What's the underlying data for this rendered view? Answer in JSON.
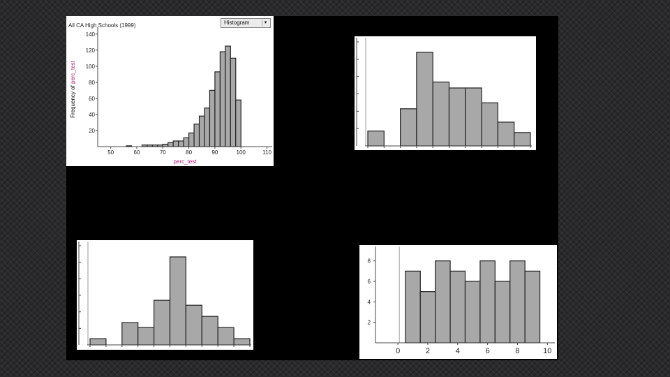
{
  "colors": {
    "bar_fill": "#a8a8a8",
    "bar_stroke": "#222222",
    "panel": "#000000",
    "accent_label": "#b0207a"
  },
  "chart_data": [
    {
      "type": "bar",
      "title": "All CA High Schools (1999)",
      "control": "Histogram",
      "xlabel": "perc_test",
      "ylabel_parts": [
        "Frequency of ",
        "perc_test"
      ],
      "x_ticks": [
        50,
        60,
        70,
        80,
        90,
        100,
        110
      ],
      "y_ticks": [
        20,
        40,
        60,
        80,
        100,
        120,
        140
      ],
      "xlim": [
        45,
        112
      ],
      "ylim": [
        0,
        145
      ],
      "bin_width": 2,
      "bin_starts": [
        56,
        62,
        64,
        66,
        68,
        70,
        72,
        74,
        76,
        78,
        80,
        82,
        84,
        86,
        88,
        90,
        92,
        94,
        96,
        98
      ],
      "values": [
        1,
        2,
        2,
        2,
        2,
        3,
        5,
        7,
        7,
        11,
        17,
        28,
        38,
        48,
        70,
        93,
        118,
        125,
        110,
        58
      ]
    },
    {
      "type": "bar",
      "bin_index": [
        0,
        1,
        2,
        3,
        4,
        5,
        6,
        7,
        8,
        9
      ],
      "values": [
        1,
        0,
        2.5,
        6.3,
        4.3,
        3.9,
        3.9,
        2.9,
        1.6,
        0.9
      ],
      "ylim": [
        0,
        7
      ],
      "grid": false
    },
    {
      "type": "bar",
      "bin_index": [
        0,
        1,
        2,
        3,
        4,
        5,
        6,
        7,
        8,
        9
      ],
      "values": [
        0.5,
        0,
        1.8,
        1.4,
        3.6,
        7.1,
        3.2,
        2.3,
        1.4,
        0.5
      ],
      "ylim": [
        0,
        8
      ],
      "grid": false
    },
    {
      "type": "bar",
      "bin_starts": [
        0.5,
        1.5,
        2.5,
        3.5,
        4.5,
        5.5,
        6.5,
        7.5,
        8.5
      ],
      "bin_width": 1,
      "values": [
        7,
        5,
        8,
        7,
        6,
        8,
        6,
        8,
        7
      ],
      "x_ticks": [
        0,
        2,
        4,
        6,
        8,
        10
      ],
      "y_ticks": [
        2,
        4,
        6,
        8
      ],
      "xlim": [
        -1.5,
        10.5
      ],
      "ylim": [
        0,
        9
      ]
    }
  ]
}
